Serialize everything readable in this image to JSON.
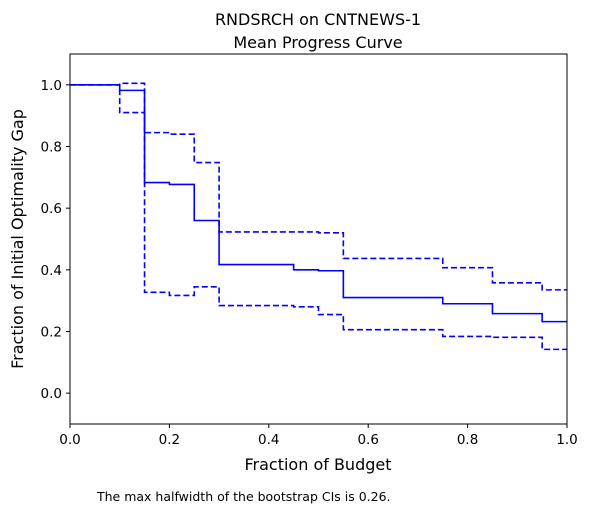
{
  "chart_data": {
    "type": "line",
    "title": "RNDSRCH on CNTNEWS-1",
    "subtitle": "Mean Progress Curve",
    "xlabel": "Fraction of Budget",
    "ylabel": "Fraction of Initial Optimality Gap",
    "xlim": [
      0,
      1
    ],
    "ylim": [
      -0.1,
      1.1
    ],
    "xticks": [
      "0.0",
      "0.2",
      "0.4",
      "0.6",
      "0.8",
      "1.0"
    ],
    "yticks": [
      "0.0",
      "0.2",
      "0.4",
      "0.6",
      "0.8",
      "1.0"
    ],
    "grid": false,
    "series": [
      {
        "style": "solid",
        "color": "#0000ff",
        "x": [
          0,
          0.1,
          0.15,
          0.2,
          0.25,
          0.3,
          0.45,
          0.5,
          0.55,
          0.75,
          0.85,
          0.95,
          1.0
        ],
        "y": [
          1.0,
          0.982,
          0.683,
          0.677,
          0.56,
          0.417,
          0.4,
          0.397,
          0.31,
          0.29,
          0.258,
          0.232,
          0.232
        ]
      },
      {
        "style": "dashed",
        "color": "#0000ff",
        "x": [
          0,
          0.1,
          0.15,
          0.2,
          0.25,
          0.3,
          0.45,
          0.5,
          0.55,
          0.75,
          0.85,
          0.95,
          1.0
        ],
        "y": [
          1.0,
          1.005,
          0.845,
          0.84,
          0.748,
          0.523,
          0.523,
          0.52,
          0.437,
          0.407,
          0.358,
          0.335,
          0.335
        ]
      },
      {
        "style": "dashed",
        "color": "#0000ff",
        "x": [
          0,
          0.1,
          0.15,
          0.2,
          0.25,
          0.3,
          0.45,
          0.5,
          0.55,
          0.75,
          0.85,
          0.95,
          1.0
        ],
        "y": [
          1.0,
          0.91,
          0.327,
          0.317,
          0.345,
          0.284,
          0.28,
          0.255,
          0.206,
          0.184,
          0.181,
          0.142,
          0.142
        ]
      }
    ]
  },
  "note": "The max halfwidth of the bootstrap CIs is 0.26."
}
